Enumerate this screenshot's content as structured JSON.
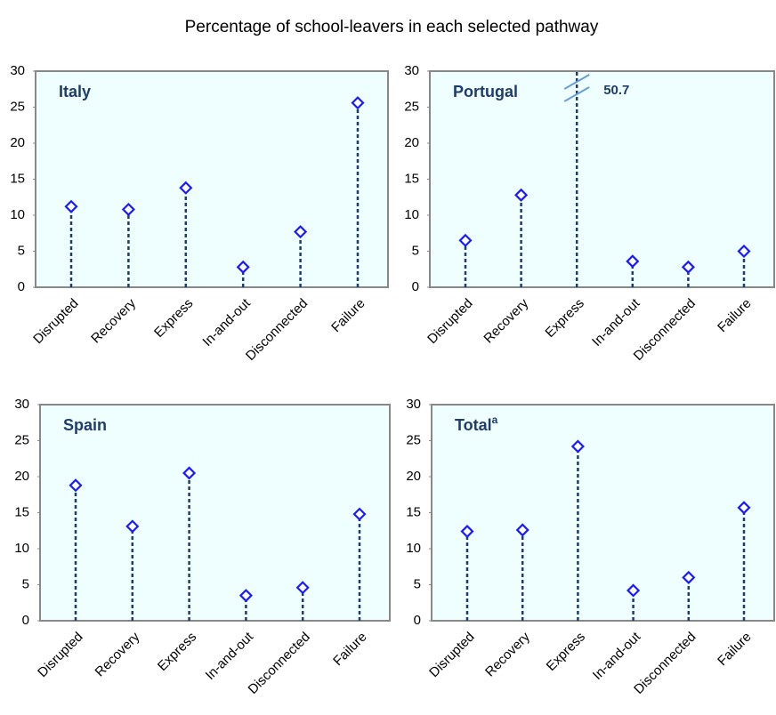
{
  "title": "Percentage of school-leavers in each selected pathway",
  "chart_data": [
    {
      "type": "stem",
      "title": "Italy",
      "categories": [
        "Disrupted",
        "Recovery",
        "Express",
        "In-and-out",
        "Disconnected",
        "Failure"
      ],
      "values": [
        11.2,
        10.8,
        13.8,
        2.8,
        7.7,
        25.6
      ],
      "color": "#1f3d6b",
      "marker_color": "#1a1aff",
      "background": "#effefe",
      "ylim": [
        0,
        30
      ],
      "yticks": [
        0,
        5,
        10,
        15,
        20,
        25,
        30
      ]
    },
    {
      "type": "stem",
      "title": "Portugal",
      "categories": [
        "Disrupted",
        "Recovery",
        "Express",
        "In-and-out",
        "Disconnected",
        "Failure"
      ],
      "values": [
        6.5,
        12.8,
        50.7,
        3.6,
        2.8,
        5.0
      ],
      "color": "#1f3d6b",
      "marker_color": "#1a1aff",
      "background": "#effefe",
      "ylim": [
        0,
        30
      ],
      "yticks": [
        0,
        5,
        10,
        15,
        20,
        25,
        30
      ]
    },
    {
      "type": "stem",
      "title": "Spain",
      "categories": [
        "Disrupted",
        "Recovery",
        "Express",
        "In-and-out",
        "Disconnected",
        "Failure"
      ],
      "values": [
        18.8,
        13.1,
        20.5,
        3.5,
        4.6,
        14.8
      ],
      "color": "#1f3d6b",
      "marker_color": "#1a1aff",
      "background": "#effefe",
      "ylim": [
        0,
        30
      ],
      "yticks": [
        0,
        5,
        10,
        15,
        20,
        25,
        30
      ]
    },
    {
      "type": "stem",
      "title": "Total",
      "title_note": "a",
      "categories": [
        "Disrupted",
        "Recovery",
        "Express",
        "In-and-out",
        "Disconnected",
        "Failure"
      ],
      "values": [
        12.4,
        12.6,
        24.2,
        4.2,
        6.0,
        15.7
      ],
      "color": "#1f3d6b",
      "marker_color": "#1a1aff",
      "background": "#effefe",
      "ylim": [
        0,
        30
      ],
      "yticks": [
        0,
        5,
        10,
        15,
        20,
        25,
        30
      ]
    }
  ]
}
